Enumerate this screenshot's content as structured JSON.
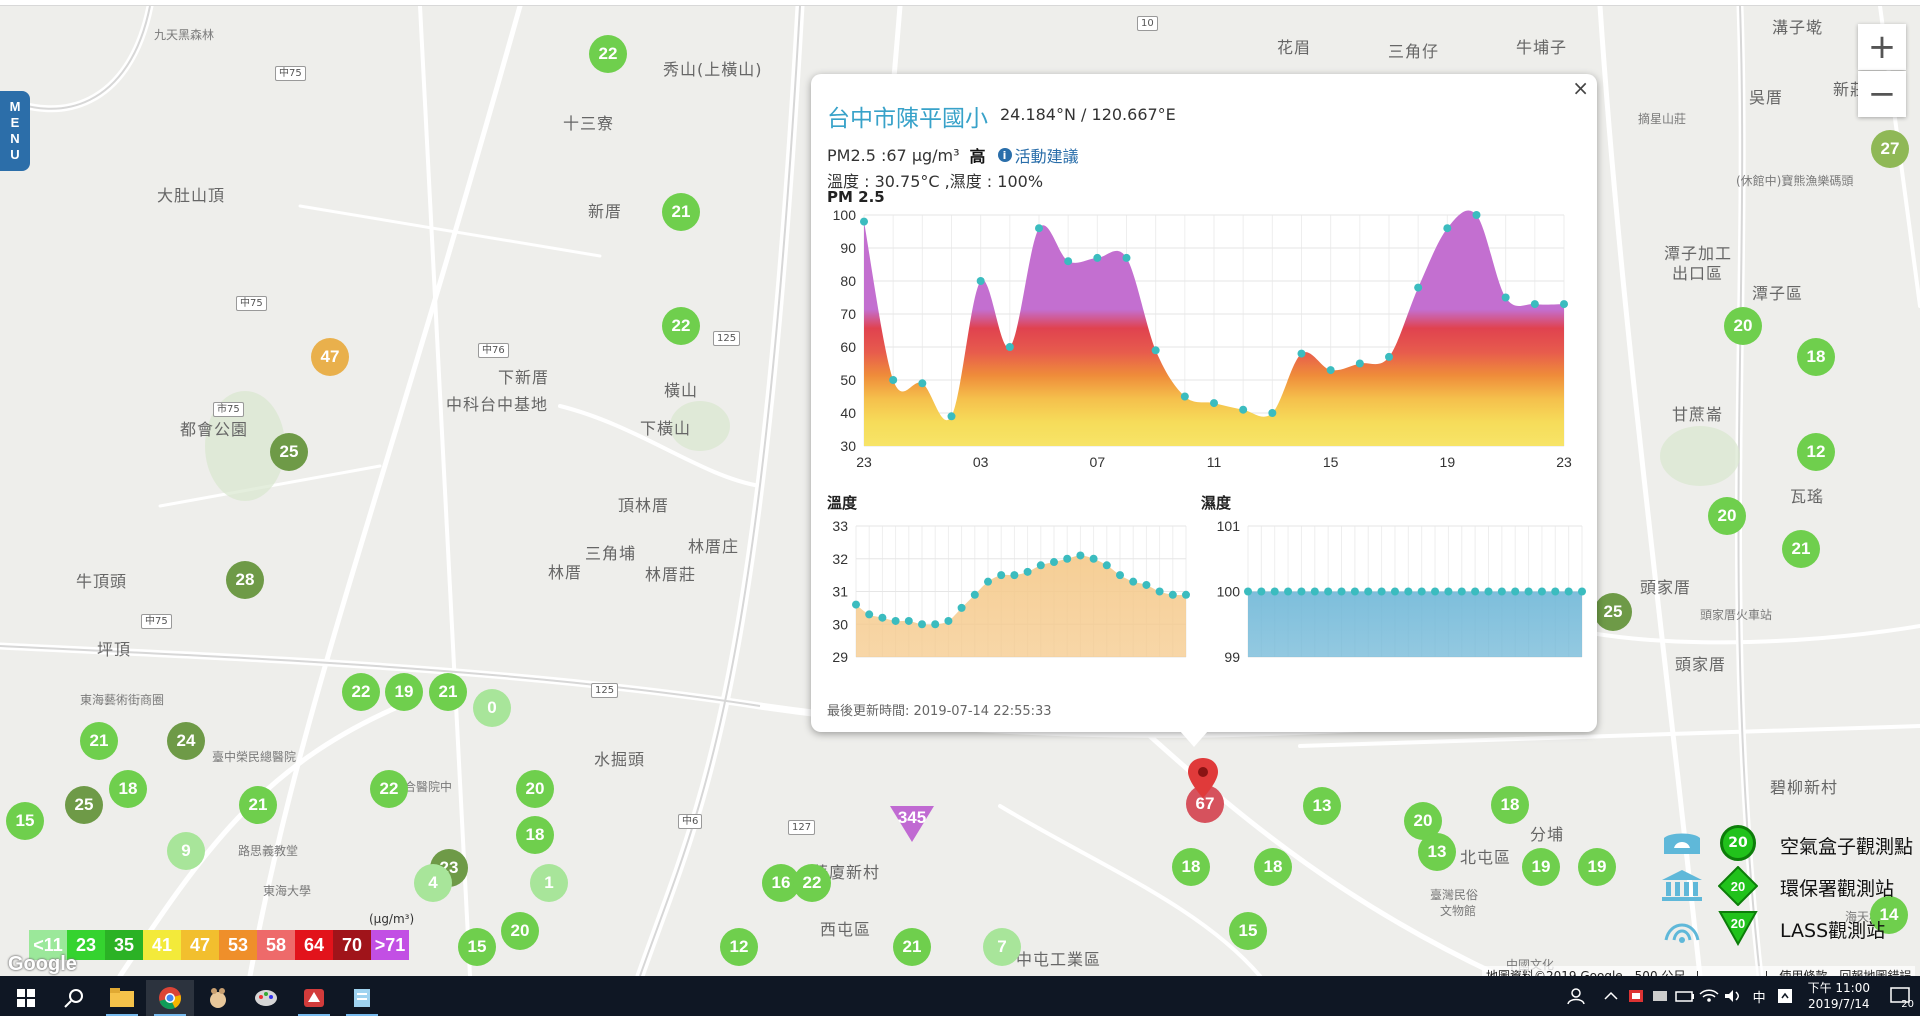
{
  "menu": {
    "letters": [
      "M",
      "E",
      "N",
      "U"
    ]
  },
  "zoom": {
    "in": "+",
    "out": "−"
  },
  "map_labels": [
    {
      "text": "九天黑森林",
      "x": 154,
      "y": 20,
      "cls": "small"
    },
    {
      "text": "秀山(上橫山)",
      "x": 663,
      "y": 50
    },
    {
      "text": "十三寮",
      "x": 563,
      "y": 104
    },
    {
      "text": "大肚山頂",
      "x": 157,
      "y": 176
    },
    {
      "text": "新厝",
      "x": 588,
      "y": 192
    },
    {
      "text": "花眉",
      "x": 1277,
      "y": 28
    },
    {
      "text": "三角仔",
      "x": 1388,
      "y": 32
    },
    {
      "text": "牛埔子",
      "x": 1516,
      "y": 28
    },
    {
      "text": "溝子墘",
      "x": 1772,
      "y": 8
    },
    {
      "text": "傅厝",
      "x": 1866,
      "y": 14
    },
    {
      "text": "吳厝",
      "x": 1749,
      "y": 78
    },
    {
      "text": "新莊子",
      "x": 1833,
      "y": 70
    },
    {
      "text": "摘星山莊",
      "x": 1638,
      "y": 104,
      "cls": "small"
    },
    {
      "text": "(休館中)寶熊漁樂碼頭",
      "x": 1736,
      "y": 166,
      "cls": "small"
    },
    {
      "text": "潭子加工",
      "x": 1664,
      "y": 234
    },
    {
      "text": "出口區",
      "x": 1672,
      "y": 254
    },
    {
      "text": "潭子區",
      "x": 1752,
      "y": 274
    },
    {
      "text": "下新厝",
      "x": 498,
      "y": 358
    },
    {
      "text": "中科台中基地",
      "x": 446,
      "y": 385
    },
    {
      "text": "橫山",
      "x": 664,
      "y": 371
    },
    {
      "text": "下橫山",
      "x": 640,
      "y": 409
    },
    {
      "text": "都會公園",
      "x": 180,
      "y": 410
    },
    {
      "text": "頂林厝",
      "x": 618,
      "y": 486
    },
    {
      "text": "三角埔",
      "x": 585,
      "y": 534
    },
    {
      "text": "林厝庄",
      "x": 688,
      "y": 527
    },
    {
      "text": "林厝",
      "x": 548,
      "y": 553
    },
    {
      "text": "林厝莊",
      "x": 645,
      "y": 555
    },
    {
      "text": "甘蔗崙",
      "x": 1672,
      "y": 395
    },
    {
      "text": "瓦瑤",
      "x": 1790,
      "y": 477
    },
    {
      "text": "頭家厝",
      "x": 1640,
      "y": 568
    },
    {
      "text": "頭家厝火車站",
      "x": 1700,
      "y": 600,
      "cls": "small"
    },
    {
      "text": "頭家厝",
      "x": 1675,
      "y": 645
    },
    {
      "text": "牛頂頭",
      "x": 76,
      "y": 562
    },
    {
      "text": "坪頂",
      "x": 97,
      "y": 630
    },
    {
      "text": "東海藝術街商圈",
      "x": 80,
      "y": 685,
      "cls": "small"
    },
    {
      "text": "臺中榮民總醫院",
      "x": 212,
      "y": 742,
      "cls": "small"
    },
    {
      "text": "清綠合醫院中",
      "x": 380,
      "y": 772,
      "cls": "small"
    },
    {
      "text": "水掘頭",
      "x": 594,
      "y": 740
    },
    {
      "text": "路思義教堂",
      "x": 238,
      "y": 836,
      "cls": "small"
    },
    {
      "text": "東海大學",
      "x": 263,
      "y": 876,
      "cls": "small"
    },
    {
      "text": "華廈新村",
      "x": 812,
      "y": 853
    },
    {
      "text": "西屯區",
      "x": 820,
      "y": 910
    },
    {
      "text": "中屯工業區",
      "x": 1016,
      "y": 940
    },
    {
      "text": "碧柳新村",
      "x": 1770,
      "y": 768
    },
    {
      "text": "分埔",
      "x": 1530,
      "y": 815
    },
    {
      "text": "北屯區",
      "x": 1460,
      "y": 838
    },
    {
      "text": "臺灣民俗",
      "x": 1430,
      "y": 880,
      "cls": "small"
    },
    {
      "text": "文物館",
      "x": 1440,
      "y": 896,
      "cls": "small"
    },
    {
      "text": "海天橋",
      "x": 1845,
      "y": 902,
      "cls": "small"
    },
    {
      "text": "中國文化",
      "x": 1506,
      "y": 950,
      "cls": "small"
    }
  ],
  "road_shields": [
    {
      "text": "中75",
      "x": 275,
      "y": 60
    },
    {
      "text": "中75",
      "x": 236,
      "y": 290
    },
    {
      "text": "市75",
      "x": 213,
      "y": 396
    },
    {
      "text": "中76",
      "x": 478,
      "y": 337
    },
    {
      "text": "125",
      "x": 713,
      "y": 325
    },
    {
      "text": "中75",
      "x": 141,
      "y": 608
    },
    {
      "text": "125",
      "x": 591,
      "y": 677
    },
    {
      "text": "中6",
      "x": 678,
      "y": 808
    },
    {
      "text": "127",
      "x": 788,
      "y": 814
    },
    {
      "text": "10",
      "x": 1137,
      "y": 10
    }
  ],
  "markers": [
    {
      "value": "22",
      "x": 608,
      "y": 48,
      "c": "c-green"
    },
    {
      "value": "21",
      "x": 681,
      "y": 206,
      "c": "c-green"
    },
    {
      "value": "22",
      "x": 681,
      "y": 320,
      "c": "c-green"
    },
    {
      "value": "47",
      "x": 330,
      "y": 351,
      "c": "c-orange"
    },
    {
      "value": "25",
      "x": 289,
      "y": 446,
      "c": "c-darkolive"
    },
    {
      "value": "28",
      "x": 245,
      "y": 574,
      "c": "c-darkolive"
    },
    {
      "value": "22",
      "x": 361,
      "y": 686,
      "c": "c-green"
    },
    {
      "value": "19",
      "x": 404,
      "y": 686,
      "c": "c-green"
    },
    {
      "value": "21",
      "x": 448,
      "y": 686,
      "c": "c-green"
    },
    {
      "value": "0",
      "x": 492,
      "y": 702,
      "c": "c-pale"
    },
    {
      "value": "21",
      "x": 99,
      "y": 735,
      "c": "c-green"
    },
    {
      "value": "24",
      "x": 186,
      "y": 735,
      "c": "c-darkolive"
    },
    {
      "value": "18",
      "x": 128,
      "y": 783,
      "c": "c-green"
    },
    {
      "value": "22",
      "x": 389,
      "y": 783,
      "c": "c-green"
    },
    {
      "value": "20",
      "x": 535,
      "y": 783,
      "c": "c-green"
    },
    {
      "value": "15",
      "x": 25,
      "y": 815,
      "c": "c-green"
    },
    {
      "value": "25",
      "x": 84,
      "y": 799,
      "c": "c-darkolive"
    },
    {
      "value": "21",
      "x": 258,
      "y": 799,
      "c": "c-green"
    },
    {
      "value": "18",
      "x": 535,
      "y": 829,
      "c": "c-green"
    },
    {
      "value": "9",
      "x": 186,
      "y": 845,
      "c": "c-pale"
    },
    {
      "value": "23",
      "x": 449,
      "y": 862,
      "c": "c-darkolive"
    },
    {
      "value": "4",
      "x": 433,
      "y": 877,
      "c": "c-pale"
    },
    {
      "value": "1",
      "x": 549,
      "y": 877,
      "c": "c-pale"
    },
    {
      "value": "16",
      "x": 781,
      "y": 877,
      "c": "c-green"
    },
    {
      "value": "22",
      "x": 812,
      "y": 877,
      "c": "c-green"
    },
    {
      "value": "20",
      "x": 520,
      "y": 925,
      "c": "c-green"
    },
    {
      "value": "15",
      "x": 477,
      "y": 941,
      "c": "c-green"
    },
    {
      "value": "12",
      "x": 739,
      "y": 941,
      "c": "c-green"
    },
    {
      "value": "21",
      "x": 912,
      "y": 941,
      "c": "c-green"
    },
    {
      "value": "7",
      "x": 1002,
      "y": 941,
      "c": "c-pale"
    },
    {
      "value": "18",
      "x": 1191,
      "y": 861,
      "c": "c-green"
    },
    {
      "value": "18",
      "x": 1273,
      "y": 861,
      "c": "c-green"
    },
    {
      "value": "13",
      "x": 1322,
      "y": 800,
      "c": "c-green"
    },
    {
      "value": "20",
      "x": 1423,
      "y": 815,
      "c": "c-green"
    },
    {
      "value": "18",
      "x": 1510,
      "y": 799,
      "c": "c-green"
    },
    {
      "value": "13",
      "x": 1437,
      "y": 846,
      "c": "c-green"
    },
    {
      "value": "19",
      "x": 1541,
      "y": 861,
      "c": "c-green"
    },
    {
      "value": "19",
      "x": 1597,
      "y": 861,
      "c": "c-green"
    },
    {
      "value": "15",
      "x": 1248,
      "y": 925,
      "c": "c-green"
    },
    {
      "value": "14",
      "x": 1889,
      "y": 909,
      "c": "c-green"
    },
    {
      "value": "27",
      "x": 1890,
      "y": 143,
      "c": "c-olive"
    },
    {
      "value": "20",
      "x": 1743,
      "y": 320,
      "c": "c-green"
    },
    {
      "value": "18",
      "x": 1816,
      "y": 351,
      "c": "c-green"
    },
    {
      "value": "12",
      "x": 1816,
      "y": 446,
      "c": "c-green"
    },
    {
      "value": "20",
      "x": 1727,
      "y": 510,
      "c": "c-green"
    },
    {
      "value": "21",
      "x": 1801,
      "y": 543,
      "c": "c-green"
    },
    {
      "value": "25",
      "x": 1613,
      "y": 606,
      "c": "c-darkolive"
    },
    {
      "value": "67",
      "x": 1205,
      "y": 798,
      "c": "c-red"
    }
  ],
  "special_marker": {
    "value": "345"
  },
  "pm_scale": {
    "unit": "(μg/m³)",
    "cells": [
      {
        "label": "<11",
        "color": "#9be89a"
      },
      {
        "label": "23",
        "color": "#35d32f"
      },
      {
        "label": "35",
        "color": "#2bb225"
      },
      {
        "label": "41",
        "color": "#f3ea3a"
      },
      {
        "label": "47",
        "color": "#f2bf2e"
      },
      {
        "label": "53",
        "color": "#ef8f2a"
      },
      {
        "label": "58",
        "color": "#ee6a6a"
      },
      {
        "label": "64",
        "color": "#e2131b"
      },
      {
        "label": "70",
        "color": "#a0141a"
      },
      {
        "label": ">71",
        "color": "#c24fe4"
      }
    ]
  },
  "station_legend": [
    {
      "label": "空氣盒子觀測點",
      "badge": "20"
    },
    {
      "label": "環保署觀測站",
      "badge": "20"
    },
    {
      "label": "LASS觀測站",
      "badge": "20"
    }
  ],
  "info": {
    "close": "×",
    "title": "台中市陳平國小",
    "coord": "24.184°N / 120.667°E",
    "pm_text": "PM2.5 :67 μg/m³",
    "pm_level": "高",
    "info_icon": "i",
    "advice": "活動建議",
    "env": "溫度 : 30.75°C ,濕度 : 100%",
    "pm_chart_title": "PM 2.5",
    "temp_chart_title": "溫度",
    "hum_chart_title": "濕度",
    "updated": "最後更新時間: 2019-07-14 22:55:33"
  },
  "chart_data": [
    {
      "type": "area",
      "title": "PM 2.5",
      "x_ticks": [
        "23",
        "03",
        "07",
        "11",
        "15",
        "19",
        "23"
      ],
      "ylim": [
        30,
        100
      ],
      "y_ticks": [
        30,
        40,
        50,
        60,
        70,
        80,
        90,
        100
      ],
      "values": [
        98,
        50,
        49,
        39,
        80,
        60,
        96,
        86,
        87,
        87,
        59,
        45,
        43,
        41,
        40,
        58,
        53,
        55,
        57,
        78,
        96,
        100,
        75,
        73,
        73
      ],
      "fill": "gradient-by-pm-level",
      "grid": true
    },
    {
      "type": "area",
      "title": "溫度",
      "ylim": [
        29,
        33
      ],
      "y_ticks": [
        29,
        30,
        31,
        32,
        33
      ],
      "values": [
        30.6,
        30.3,
        30.2,
        30.1,
        30.1,
        30.0,
        30.0,
        30.1,
        30.5,
        30.9,
        31.3,
        31.5,
        31.5,
        31.6,
        31.8,
        31.9,
        32.0,
        32.1,
        32.0,
        31.8,
        31.5,
        31.3,
        31.2,
        31.0,
        30.9,
        30.9
      ],
      "color": "#f5c98a",
      "grid": true
    },
    {
      "type": "area",
      "title": "濕度",
      "ylim": [
        99,
        101
      ],
      "y_ticks": [
        99,
        100,
        101
      ],
      "values": [
        100,
        100,
        100,
        100,
        100,
        100,
        100,
        100,
        100,
        100,
        100,
        100,
        100,
        100,
        100,
        100,
        100,
        100,
        100,
        100,
        100,
        100,
        100,
        100,
        100,
        100
      ],
      "color": "#6fb7d7",
      "grid": true
    }
  ],
  "attribution": {
    "map_data": "地圖資料©2019 Google",
    "scale": "500 公尺",
    "terms": "使用條款",
    "report": "回報地圖錯誤"
  },
  "google_logo": "Google",
  "taskbar": {
    "time": "下午 11:00",
    "date": "2019/7/14",
    "ime": "中",
    "notifications": "20"
  }
}
